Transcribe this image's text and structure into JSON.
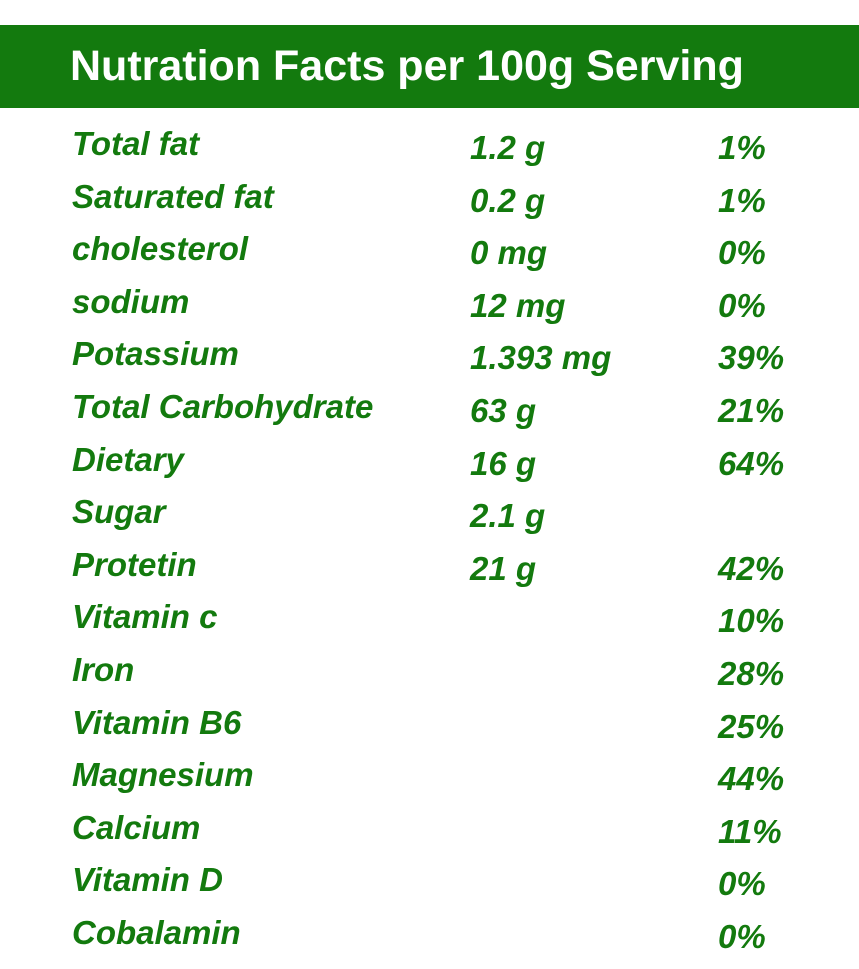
{
  "header": {
    "title": "Nutration Facts per 100g Serving"
  },
  "colors": {
    "header_background": "#137a0e",
    "header_text": "#ffffff",
    "row_text": "#137a0e"
  },
  "rows": [
    {
      "name": "Total fat",
      "amount": "1.2 g",
      "dv": "1%"
    },
    {
      "name": "Saturated fat",
      "amount": "0.2 g",
      "dv": "1%"
    },
    {
      "name": "cholesterol",
      "amount": "0 mg",
      "dv": "0%"
    },
    {
      "name": "sodium",
      "amount": "12 mg",
      "dv": "0%"
    },
    {
      "name": "Potassium",
      "amount": "1.393 mg",
      "dv": "39%"
    },
    {
      "name": "Total Carbohydrate",
      "amount": "63 g",
      "dv": "21%"
    },
    {
      "name": "Dietary",
      "amount": "16 g",
      "dv": "64%"
    },
    {
      "name": "Sugar",
      "amount": "2.1 g",
      "dv": ""
    },
    {
      "name": "Protetin",
      "amount": "21 g",
      "dv": "42%"
    },
    {
      "name": "Vitamin c",
      "amount": "",
      "dv": "10%"
    },
    {
      "name": "Iron",
      "amount": "",
      "dv": "28%"
    },
    {
      "name": "Vitamin B6",
      "amount": "",
      "dv": "25%"
    },
    {
      "name": "Magnesium",
      "amount": "",
      "dv": "44%"
    },
    {
      "name": "Calcium",
      "amount": "",
      "dv": "11%"
    },
    {
      "name": "Vitamin D",
      "amount": "",
      "dv": "0%"
    },
    {
      "name": "Cobalamin",
      "amount": "",
      "dv": "0%"
    }
  ]
}
